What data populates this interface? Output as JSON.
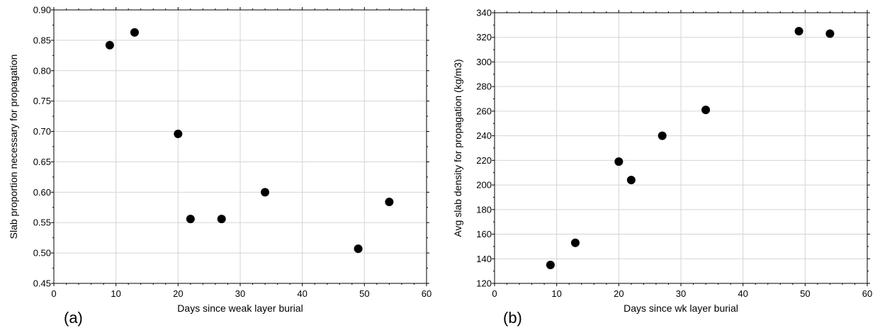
{
  "chart_data": [
    {
      "type": "scatter",
      "panel_label": "(a)",
      "title": "",
      "xlabel": "Days since weak layer burial",
      "ylabel": "Slab proportion necessary for propagation",
      "xlim": [
        0,
        60
      ],
      "ylim": [
        0.45,
        0.9
      ],
      "xticks": [
        "0",
        "10",
        "20",
        "30",
        "40",
        "50",
        "60"
      ],
      "yticks": [
        "0.45",
        "0.50",
        "0.55",
        "0.60",
        "0.65",
        "0.70",
        "0.75",
        "0.80",
        "0.85",
        "0.90"
      ],
      "grid": true,
      "marker_color": "#000000",
      "x": [
        9,
        13,
        20,
        22,
        27,
        34,
        49,
        54
      ],
      "y": [
        0.842,
        0.863,
        0.696,
        0.556,
        0.556,
        0.6,
        0.507,
        0.584
      ]
    },
    {
      "type": "scatter",
      "panel_label": "(b)",
      "title": "",
      "xlabel": "Days since wk layer burial",
      "ylabel": "Avg slab density for propagation (kg/m3)",
      "xlim": [
        0,
        60
      ],
      "ylim": [
        120,
        340
      ],
      "xticks": [
        "0",
        "10",
        "20",
        "30",
        "40",
        "50",
        "60"
      ],
      "yticks": [
        "120",
        "140",
        "160",
        "180",
        "200",
        "220",
        "240",
        "260",
        "280",
        "300",
        "320",
        "340"
      ],
      "grid": true,
      "marker_color": "#000000",
      "x": [
        9,
        13,
        20,
        22,
        27,
        34,
        49,
        54
      ],
      "y": [
        135,
        153,
        219,
        204,
        240,
        261,
        325,
        323
      ]
    }
  ]
}
